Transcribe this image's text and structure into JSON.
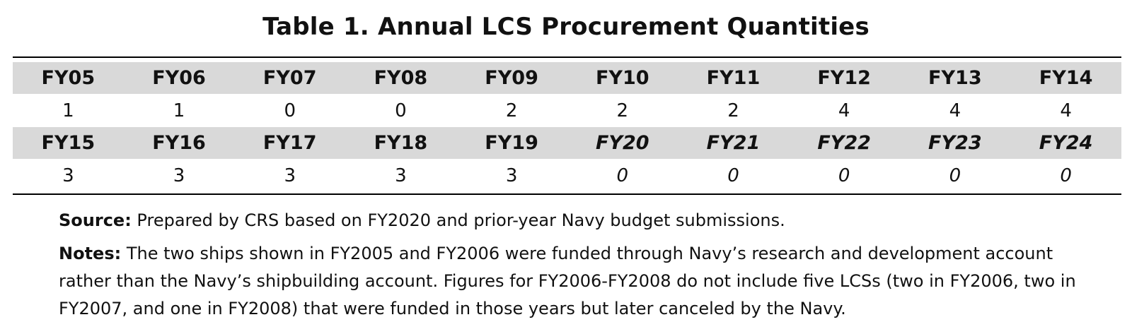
{
  "title": "Table 1. Annual LCS Procurement Quantities",
  "table": {
    "row1_headers": [
      "FY05",
      "FY06",
      "FY07",
      "FY08",
      "FY09",
      "FY10",
      "FY11",
      "FY12",
      "FY13",
      "FY14"
    ],
    "row1_values": [
      "1",
      "1",
      "0",
      "0",
      "2",
      "2",
      "2",
      "4",
      "4",
      "4"
    ],
    "row2_headers": [
      "FY15",
      "FY16",
      "FY17",
      "FY18",
      "FY19",
      "FY20",
      "FY21",
      "FY22",
      "FY23",
      "FY24"
    ],
    "row2_values": [
      "3",
      "3",
      "3",
      "3",
      "3",
      "0",
      "0",
      "0",
      "0",
      "0"
    ]
  },
  "source": {
    "label": "Source:",
    "text": " Prepared by CRS based on FY2020 and prior-year Navy budget submissions."
  },
  "notes": {
    "label": "Notes:",
    "text": " The two ships shown in FY2005 and FY2006 were funded through Navy’s research and development account rather than the Navy’s shipbuilding account. Figures for FY2006-FY2008 do not include five LCSs (two in FY2006, two in FY2007, and one in FY2008) that were funded in those years but later canceled by the Navy."
  }
}
